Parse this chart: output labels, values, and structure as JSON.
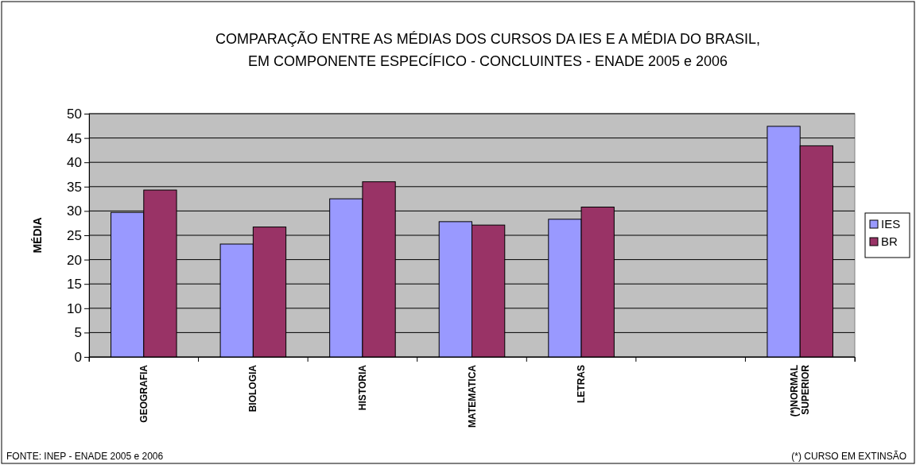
{
  "chart_data": {
    "type": "bar",
    "title": "COMPARAÇÃO ENTRE AS MÉDIAS DOS CURSOS DA IES E A MÉDIA DO BRASIL, EM COMPONENTE ESPECÍFICO - CONCLUINTES - ENADE 2005 e 2006",
    "ylabel": "MÉDIA",
    "categories": [
      "GEOGRAFIA",
      "BIOLOGIA",
      "HISTORIA",
      "MATEMATICA",
      "LETRAS",
      null,
      "(*)NORMAL SUPERIOR"
    ],
    "series": [
      {
        "name": "IES",
        "color": "#9999ff",
        "values": [
          29.7,
          23.2,
          32.5,
          27.8,
          28.3,
          null,
          47.4
        ]
      },
      {
        "name": "BR",
        "color": "#993366",
        "values": [
          34.3,
          26.7,
          36.0,
          27.1,
          30.8,
          null,
          43.4
        ]
      }
    ],
    "ylim": [
      0,
      50
    ],
    "yticks": [
      0,
      5,
      10,
      15,
      20,
      25,
      30,
      35,
      40,
      45,
      50
    ],
    "grid": "y",
    "legend": "right",
    "annotations": [
      "FONTE: INEP - ENADE 2005 e 2006",
      "(*) CURSO EM EXTINSÃO"
    ]
  }
}
